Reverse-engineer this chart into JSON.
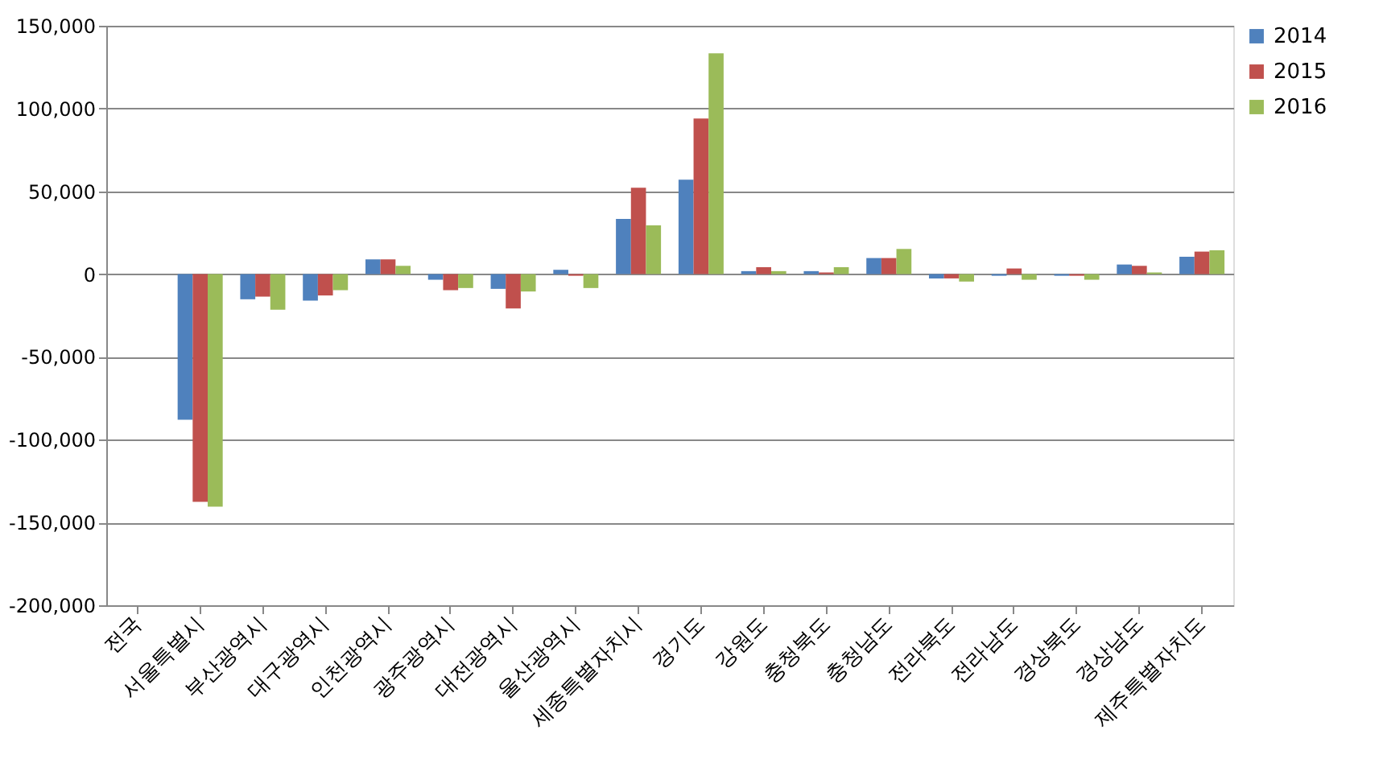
{
  "chart_data": {
    "type": "bar",
    "categories": [
      "전국",
      "서울특별시",
      "부산광역시",
      "대구광역시",
      "인천광역시",
      "광주광역시",
      "대전광역시",
      "울산광역시",
      "세종특별자치시",
      "경기도",
      "강원도",
      "충청북도",
      "충청남도",
      "전라북도",
      "전라남도",
      "경상북도",
      "경상남도",
      "제주특별자치도"
    ],
    "series": [
      {
        "name": "2014",
        "color": "#4f81bd",
        "values": [
          0,
          -88000,
          -15200,
          -16000,
          8900,
          -3400,
          -8900,
          2600,
          33300,
          57000,
          1800,
          1800,
          9700,
          -2600,
          -1000,
          -1000,
          5800,
          10500
        ]
      },
      {
        "name": "2015",
        "color": "#c0504d",
        "values": [
          0,
          -137500,
          -13600,
          -12900,
          8900,
          -9700,
          -20700,
          -1000,
          52200,
          94000,
          4200,
          1000,
          9700,
          -2600,
          3400,
          -1000,
          5000,
          13600
        ]
      },
      {
        "name": "2016",
        "color": "#9bbb59",
        "values": [
          0,
          -140400,
          -21500,
          -9700,
          5000,
          -8400,
          -10500,
          -8400,
          29400,
          133300,
          1800,
          4200,
          15200,
          -4500,
          -3400,
          -3400,
          1000,
          14400
        ]
      }
    ],
    "ylim": [
      -200000,
      150000
    ],
    "yticks": [
      {
        "value": -200000,
        "label": "-200,000"
      },
      {
        "value": -150000,
        "label": "-150,000"
      },
      {
        "value": -100000,
        "label": "-100,000"
      },
      {
        "value": -50000,
        "label": "-50,000"
      },
      0,
      {
        "value": 50000,
        "label": "50,000"
      },
      {
        "value": 100000,
        "label": "100,000"
      },
      {
        "value": 150000,
        "label": "150,000"
      }
    ],
    "grid": "y",
    "legend": "right"
  }
}
